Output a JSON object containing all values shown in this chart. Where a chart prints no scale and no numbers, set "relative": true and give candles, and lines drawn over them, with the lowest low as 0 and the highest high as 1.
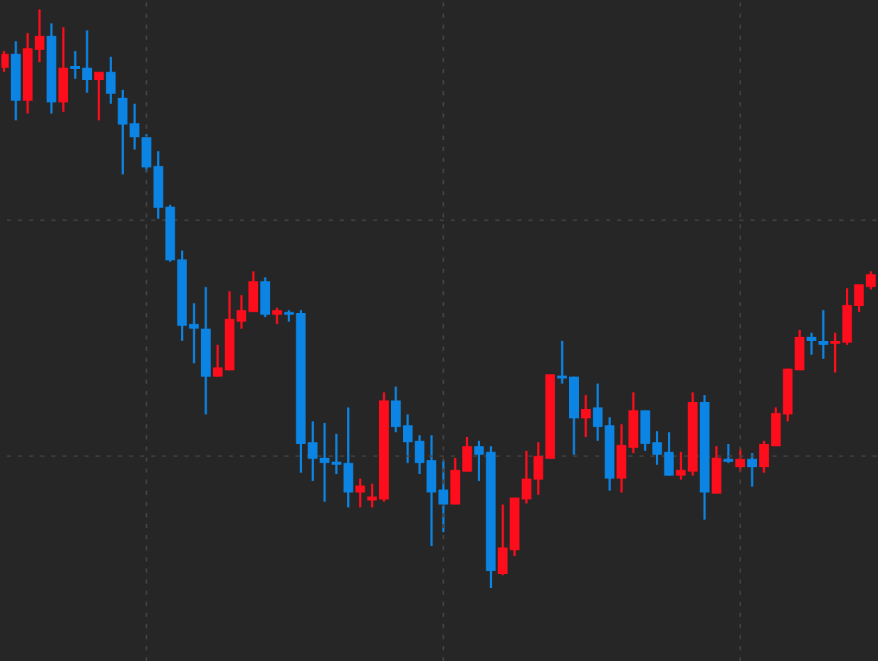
{
  "chart_data": {
    "type": "candlestick",
    "relative": true,
    "grid": true,
    "categories": [
      null,
      null,
      null,
      null,
      null,
      null,
      null,
      null,
      null,
      null,
      null,
      null,
      null,
      null,
      null,
      null,
      null,
      null,
      null,
      null,
      null,
      null,
      null,
      null,
      null,
      null,
      null,
      null,
      null,
      null,
      null,
      null,
      null,
      null,
      null,
      null,
      null,
      null,
      null,
      null,
      null,
      null,
      null,
      null,
      null,
      null,
      null,
      null,
      null,
      null,
      null,
      null,
      null,
      null,
      null,
      null,
      null,
      null,
      null,
      null,
      null,
      null,
      null,
      null,
      null,
      null,
      null,
      null,
      null,
      null,
      null,
      null,
      null,
      null
    ],
    "ohlc": [
      [
        0.899,
        0.928,
        0.892,
        0.923
      ],
      [
        0.923,
        0.945,
        0.808,
        0.842
      ],
      [
        0.842,
        0.959,
        0.82,
        0.933
      ],
      [
        0.93,
        1.0,
        0.909,
        0.954
      ],
      [
        0.954,
        0.976,
        0.82,
        0.839
      ],
      [
        0.839,
        0.969,
        0.823,
        0.899
      ],
      [
        0.902,
        0.928,
        0.88,
        0.897
      ],
      [
        0.899,
        0.964,
        0.856,
        0.878
      ],
      [
        0.878,
        0.892,
        0.808,
        0.892
      ],
      [
        0.892,
        0.918,
        0.837,
        0.854
      ],
      [
        0.847,
        0.861,
        0.715,
        0.801
      ],
      [
        0.803,
        0.837,
        0.758,
        0.779
      ],
      [
        0.779,
        0.784,
        0.719,
        0.727
      ],
      [
        0.729,
        0.755,
        0.638,
        0.657
      ],
      [
        0.659,
        0.662,
        0.564,
        0.566
      ],
      [
        0.568,
        0.583,
        0.427,
        0.453
      ],
      [
        0.456,
        0.492,
        0.388,
        0.448
      ],
      [
        0.448,
        0.52,
        0.3,
        0.365
      ],
      [
        0.365,
        0.42,
        0.365,
        0.381
      ],
      [
        0.376,
        0.513,
        0.376,
        0.465
      ],
      [
        0.46,
        0.506,
        0.448,
        0.48
      ],
      [
        0.477,
        0.547,
        0.477,
        0.53
      ],
      [
        0.53,
        0.537,
        0.468,
        0.472
      ],
      [
        0.472,
        0.484,
        0.456,
        0.48
      ],
      [
        0.477,
        0.48,
        0.46,
        0.472
      ],
      [
        0.475,
        0.48,
        0.199,
        0.249
      ],
      [
        0.252,
        0.288,
        0.185,
        0.223
      ],
      [
        0.225,
        0.285,
        0.149,
        0.216
      ],
      [
        0.218,
        0.266,
        0.197,
        0.213
      ],
      [
        0.216,
        0.312,
        0.139,
        0.165
      ],
      [
        0.165,
        0.189,
        0.139,
        0.177
      ],
      [
        0.151,
        0.18,
        0.139,
        0.158
      ],
      [
        0.153,
        0.338,
        0.149,
        0.324
      ],
      [
        0.324,
        0.348,
        0.269,
        0.278
      ],
      [
        0.281,
        0.3,
        0.216,
        0.252
      ],
      [
        0.254,
        0.264,
        0.197,
        0.216
      ],
      [
        0.221,
        0.264,
        0.072,
        0.165
      ],
      [
        0.17,
        0.221,
        0.096,
        0.144
      ],
      [
        0.144,
        0.225,
        0.144,
        0.204
      ],
      [
        0.201,
        0.261,
        0.201,
        0.245
      ],
      [
        0.245,
        0.254,
        0.185,
        0.23
      ],
      [
        0.235,
        0.245,
        0.0,
        0.029
      ],
      [
        0.024,
        0.144,
        0.022,
        0.07
      ],
      [
        0.065,
        0.156,
        0.055,
        0.156
      ],
      [
        0.153,
        0.237,
        0.146,
        0.189
      ],
      [
        0.187,
        0.252,
        0.161,
        0.228
      ],
      [
        0.223,
        0.369,
        0.223,
        0.369
      ],
      [
        0.367,
        0.427,
        0.353,
        0.362
      ],
      [
        0.365,
        0.365,
        0.23,
        0.293
      ],
      [
        0.293,
        0.333,
        0.261,
        0.309
      ],
      [
        0.312,
        0.353,
        0.254,
        0.278
      ],
      [
        0.281,
        0.295,
        0.168,
        0.189
      ],
      [
        0.189,
        0.283,
        0.165,
        0.247
      ],
      [
        0.242,
        0.338,
        0.233,
        0.307
      ],
      [
        0.307,
        0.307,
        0.237,
        0.249
      ],
      [
        0.252,
        0.271,
        0.213,
        0.23
      ],
      [
        0.235,
        0.269,
        0.194,
        0.194
      ],
      [
        0.194,
        0.235,
        0.187,
        0.204
      ],
      [
        0.201,
        0.338,
        0.194,
        0.321
      ],
      [
        0.321,
        0.333,
        0.118,
        0.165
      ],
      [
        0.163,
        0.245,
        0.163,
        0.225
      ],
      [
        0.223,
        0.249,
        0.216,
        0.218
      ],
      [
        0.209,
        0.242,
        0.201,
        0.223
      ],
      [
        0.223,
        0.233,
        0.175,
        0.209
      ],
      [
        0.209,
        0.254,
        0.199,
        0.249
      ],
      [
        0.245,
        0.312,
        0.245,
        0.302
      ],
      [
        0.3,
        0.379,
        0.288,
        0.379
      ],
      [
        0.376,
        0.446,
        0.376,
        0.434
      ],
      [
        0.434,
        0.441,
        0.403,
        0.427
      ],
      [
        0.427,
        0.48,
        0.396,
        0.42
      ],
      [
        0.422,
        0.441,
        0.372,
        0.427
      ],
      [
        0.424,
        0.518,
        0.42,
        0.489
      ],
      [
        0.487,
        0.525,
        0.477,
        0.525
      ],
      [
        0.52,
        0.547,
        0.516,
        0.542
      ]
    ],
    "colors": [
      "#fe0d1c",
      "#0c84e4",
      "#fe0d1c",
      "#fe0d1c",
      "#0c84e4",
      "#fe0d1c",
      "#0c84e4",
      "#0c84e4",
      "#fe0d1c",
      "#0c84e4",
      "#0c84e4",
      "#0c84e4",
      "#0c84e4",
      "#0c84e4",
      "#0c84e4",
      "#0c84e4",
      "#0c84e4",
      "#0c84e4",
      "#fe0d1c",
      "#fe0d1c",
      "#fe0d1c",
      "#fe0d1c",
      "#0c84e4",
      "#fe0d1c",
      "#0c84e4",
      "#0c84e4",
      "#0c84e4",
      "#0c84e4",
      "#0c84e4",
      "#0c84e4",
      "#fe0d1c",
      "#fe0d1c",
      "#fe0d1c",
      "#0c84e4",
      "#0c84e4",
      "#0c84e4",
      "#0c84e4",
      "#0c84e4",
      "#fe0d1c",
      "#fe0d1c",
      "#0c84e4",
      "#0c84e4",
      "#fe0d1c",
      "#fe0d1c",
      "#fe0d1c",
      "#fe0d1c",
      "#fe0d1c",
      "#0c84e4",
      "#0c84e4",
      "#fe0d1c",
      "#0c84e4",
      "#0c84e4",
      "#fe0d1c",
      "#fe0d1c",
      "#0c84e4",
      "#0c84e4",
      "#0c84e4",
      "#fe0d1c",
      "#fe0d1c",
      "#0c84e4",
      "#fe0d1c",
      "#0c84e4",
      "#fe0d1c",
      "#0c84e4",
      "#fe0d1c",
      "#fe0d1c",
      "#fe0d1c",
      "#fe0d1c",
      "#0c84e4",
      "#0c84e4",
      "#fe0d1c",
      "#fe0d1c",
      "#fe0d1c",
      "#fe0d1c"
    ]
  }
}
